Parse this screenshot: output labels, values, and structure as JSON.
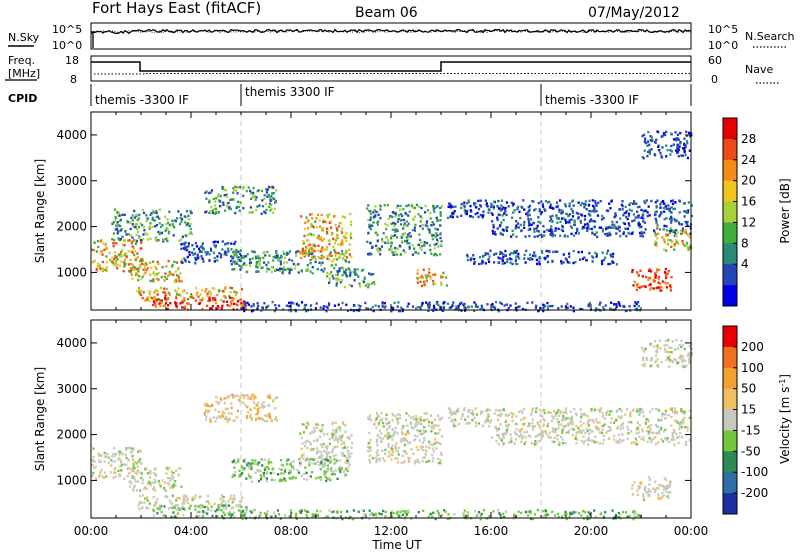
{
  "header": {
    "station": "Fort Hays East (fitACF)",
    "beam": "Beam 06",
    "date": "07/May/2012"
  },
  "labels": {
    "nsky": "N.Sky",
    "nsearch": "N.Search",
    "freq_line1": "Freq.",
    "freq_line2": "[MHz]",
    "nave": "Nave",
    "cpid": "CPID"
  },
  "noise_axis": {
    "left_ticks": [
      "10^5",
      "10^0"
    ],
    "right_ticks": [
      "10^5",
      "10^0"
    ]
  },
  "freq_axis": {
    "left_ticks": [
      "18",
      "8"
    ],
    "right_ticks": [
      "60",
      "0"
    ]
  },
  "cpid_segments": [
    {
      "start_hour": 0,
      "label": "themis -3300 IF"
    },
    {
      "start_hour": 6,
      "label": "themis 3300 IF"
    },
    {
      "start_hour": 18,
      "label": "themis -3300 IF"
    }
  ],
  "chart_data": [
    {
      "type": "heatmap",
      "title": "",
      "xlabel": "",
      "ylabel": "Slant Range [km]",
      "xlim": [
        0,
        24
      ],
      "ylim": [
        180,
        4500
      ],
      "yticks": [
        1000,
        2000,
        3000,
        4000
      ],
      "colorbar": {
        "label": "Power [dB]",
        "ticks": [
          "28",
          "24",
          "20",
          "16",
          "12",
          "8",
          "4"
        ],
        "colors": [
          "#0000e6",
          "#2445b8",
          "#2a8a7a",
          "#3fae3a",
          "#a8d23a",
          "#f2c41e",
          "#f58c1a",
          "#ee4a18",
          "#e60000"
        ]
      },
      "scatter_regions": [
        {
          "t0": 0.0,
          "t1": 2.0,
          "r0": 1050,
          "r1": 1750,
          "level": "high"
        },
        {
          "t0": 1.5,
          "t1": 3.6,
          "r0": 800,
          "r1": 1300,
          "level": "high"
        },
        {
          "t0": 1.8,
          "t1": 6.0,
          "r0": 400,
          "r1": 700,
          "level": "high"
        },
        {
          "t0": 2.4,
          "t1": 6.2,
          "r0": 200,
          "r1": 480,
          "level": "max"
        },
        {
          "t0": 0.8,
          "t1": 4.0,
          "r0": 1700,
          "r1": 2400,
          "level": "mid"
        },
        {
          "t0": 4.5,
          "t1": 7.4,
          "r0": 2300,
          "r1": 2900,
          "level": "mid"
        },
        {
          "t0": 3.5,
          "t1": 6.0,
          "r0": 1200,
          "r1": 1700,
          "level": "low"
        },
        {
          "t0": 5.6,
          "t1": 10.3,
          "r0": 1000,
          "r1": 1500,
          "level": "mid"
        },
        {
          "t0": 8.3,
          "t1": 10.4,
          "r0": 1300,
          "r1": 2300,
          "level": "high"
        },
        {
          "t0": 9.4,
          "t1": 11.3,
          "r0": 700,
          "r1": 1100,
          "level": "mid"
        },
        {
          "t0": 11.0,
          "t1": 14.0,
          "r0": 1400,
          "r1": 2500,
          "level": "mid"
        },
        {
          "t0": 13.0,
          "t1": 14.2,
          "r0": 700,
          "r1": 1100,
          "level": "high"
        },
        {
          "t0": 14.2,
          "t1": 24.0,
          "r0": 2200,
          "r1": 2600,
          "level": "low"
        },
        {
          "t0": 16.0,
          "t1": 24.0,
          "r0": 1800,
          "r1": 2200,
          "level": "low"
        },
        {
          "t0": 15.0,
          "t1": 21.0,
          "r0": 1200,
          "r1": 1500,
          "level": "low"
        },
        {
          "t0": 21.6,
          "t1": 23.2,
          "r0": 600,
          "r1": 1100,
          "level": "max"
        },
        {
          "t0": 22.5,
          "t1": 24.0,
          "r0": 1500,
          "r1": 2000,
          "level": "high"
        },
        {
          "t0": 22.0,
          "t1": 24.0,
          "r0": 3500,
          "r1": 4100,
          "level": "low"
        },
        {
          "t0": 6.0,
          "t1": 22.0,
          "r0": 180,
          "r1": 380,
          "level": "low"
        }
      ]
    },
    {
      "type": "heatmap",
      "title": "",
      "xlabel": "Time UT",
      "ylabel": "Slant Range [km]",
      "xlim": [
        0,
        24
      ],
      "ylim": [
        180,
        4500
      ],
      "yticks": [
        1000,
        2000,
        3000,
        4000
      ],
      "xticks": [
        "00:00",
        "04:00",
        "08:00",
        "12:00",
        "16:00",
        "20:00",
        "00:00"
      ],
      "colorbar": {
        "label": "Velocity [m s^-1]",
        "ticks": [
          "200",
          "100",
          "50",
          "15",
          "-15",
          "-50",
          "-100",
          "-200"
        ],
        "colors": [
          "#1a2ea0",
          "#2e6ea8",
          "#2c8a55",
          "#72c83a",
          "#c8c8c0",
          "#f0c060",
          "#f2a030",
          "#f07020",
          "#e60000"
        ]
      },
      "scatter_regions": [
        {
          "t0": 0.0,
          "t1": 2.0,
          "r0": 1050,
          "r1": 1750,
          "level": "gray"
        },
        {
          "t0": 1.5,
          "t1": 3.6,
          "r0": 800,
          "r1": 1300,
          "level": "gray"
        },
        {
          "t0": 1.8,
          "t1": 6.0,
          "r0": 400,
          "r1": 700,
          "level": "gray"
        },
        {
          "t0": 2.4,
          "t1": 6.2,
          "r0": 200,
          "r1": 480,
          "level": "green"
        },
        {
          "t0": 4.5,
          "t1": 7.4,
          "r0": 2300,
          "r1": 2900,
          "level": "orange"
        },
        {
          "t0": 5.6,
          "t1": 10.3,
          "r0": 1000,
          "r1": 1500,
          "level": "green"
        },
        {
          "t0": 8.3,
          "t1": 10.4,
          "r0": 1300,
          "r1": 2300,
          "level": "gray"
        },
        {
          "t0": 11.0,
          "t1": 14.0,
          "r0": 1400,
          "r1": 2500,
          "level": "gray"
        },
        {
          "t0": 14.2,
          "t1": 24.0,
          "r0": 2200,
          "r1": 2600,
          "level": "gray"
        },
        {
          "t0": 16.0,
          "t1": 24.0,
          "r0": 1800,
          "r1": 2200,
          "level": "gray"
        },
        {
          "t0": 21.6,
          "t1": 23.2,
          "r0": 600,
          "r1": 1100,
          "level": "gray"
        },
        {
          "t0": 22.0,
          "t1": 24.0,
          "r0": 3500,
          "r1": 4100,
          "level": "gray"
        },
        {
          "t0": 6.0,
          "t1": 22.0,
          "r0": 180,
          "r1": 380,
          "level": "green"
        }
      ]
    }
  ]
}
